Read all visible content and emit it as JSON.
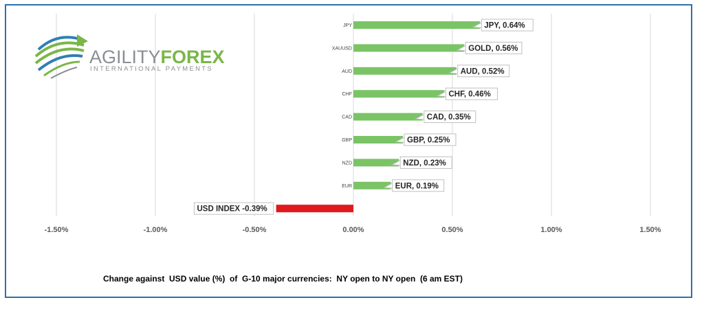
{
  "logo": {
    "name_part1": "AGILITY",
    "name_part2": "FOREX",
    "tagline": "INTERNATIONAL PAYMENTS",
    "colors": {
      "green": "#7ab648",
      "blue": "#2f7fb4",
      "gray": "#8a8f93"
    }
  },
  "footer": {
    "title": "Change against  USD value (%)  of  G-10 major currencies:  NY open to NY open  (6 am EST)"
  },
  "chart_data": {
    "type": "bar",
    "orientation": "horizontal",
    "categories": [
      "JPY",
      "XAUUSD",
      "AUD",
      "CHF",
      "CAD",
      "GBP",
      "NZD",
      "EUR",
      ""
    ],
    "values": [
      0.64,
      0.56,
      0.52,
      0.46,
      0.35,
      0.25,
      0.23,
      0.19,
      -0.39
    ],
    "data_labels": [
      "JPY, 0.64%",
      "GOLD, 0.56%",
      "AUD, 0.52%",
      "CHF, 0.46%",
      "CAD, 0.35%",
      "GBP, 0.25%",
      "NZD, 0.23%",
      "EUR, 0.19%",
      "USD INDEX -0.39%"
    ],
    "colors": [
      "#7ac466",
      "#7ac466",
      "#7ac466",
      "#7ac466",
      "#7ac466",
      "#7ac466",
      "#7ac466",
      "#7ac466",
      "#e0191c"
    ],
    "x_ticks": [
      -1.5,
      -1.0,
      -0.5,
      0.0,
      0.5,
      1.0,
      1.5
    ],
    "x_tick_labels": [
      "-1.50%",
      "-1.00%",
      "-0.50%",
      "0.00%",
      "0.50%",
      "1.00%",
      "1.50%"
    ],
    "xlim": [
      -1.5,
      1.5
    ],
    "grid": true,
    "title": "",
    "xlabel": "",
    "ylabel": ""
  }
}
